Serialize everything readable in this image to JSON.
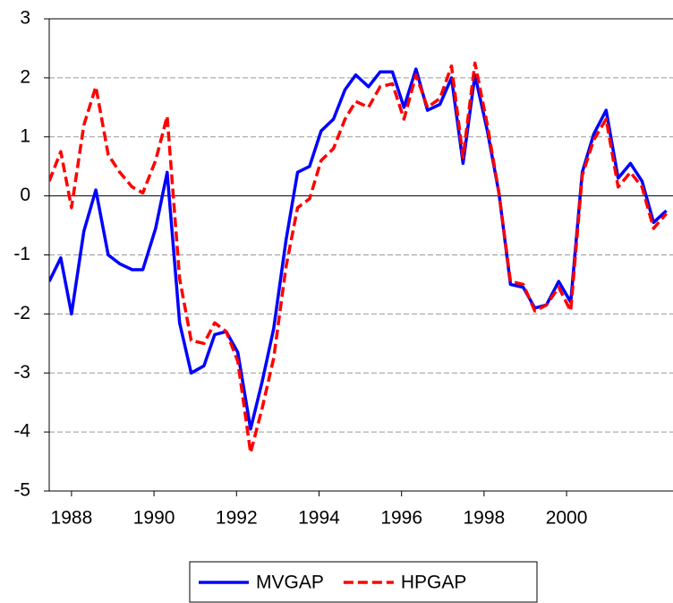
{
  "chart_data": {
    "type": "line",
    "x": [
      1987.46,
      1987.74,
      1988.0,
      1988.3,
      1988.59,
      1988.89,
      1989.17,
      1989.47,
      1989.73,
      1990.04,
      1990.32,
      1990.62,
      1990.9,
      1991.21,
      1991.47,
      1991.75,
      1992.03,
      1992.34,
      1992.62,
      1992.9,
      1993.2,
      1993.48,
      1993.77,
      1994.05,
      1994.35,
      1994.63,
      1994.89,
      1995.2,
      1995.48,
      1995.78,
      1996.06,
      1996.35,
      1996.63,
      1996.93,
      1997.21,
      1997.49,
      1997.78,
      1998.08,
      1998.36,
      1998.64,
      1998.95,
      1999.23,
      1999.51,
      1999.81,
      2000.1,
      2000.38,
      2000.66,
      2000.96,
      2001.25,
      2001.55,
      2001.83,
      2002.11,
      2002.42
    ],
    "series": [
      {
        "name": "MVGAP",
        "color": "#0000ff",
        "dashed": false,
        "values": [
          -1.45,
          -1.05,
          -2.0,
          -0.6,
          0.1,
          -1.0,
          -1.15,
          -1.25,
          -1.25,
          -0.55,
          0.4,
          -2.15,
          -3.0,
          -2.88,
          -2.35,
          -2.3,
          -2.65,
          -3.95,
          -3.15,
          -2.25,
          -0.75,
          0.4,
          0.5,
          1.1,
          1.3,
          1.8,
          2.05,
          1.85,
          2.1,
          2.1,
          1.5,
          2.15,
          1.45,
          1.55,
          2.0,
          0.55,
          2.05,
          1.1,
          0.05,
          -1.5,
          -1.55,
          -1.9,
          -1.85,
          -1.45,
          -1.8,
          0.4,
          1.05,
          1.45,
          0.3,
          0.55,
          0.25,
          -0.45,
          -0.25
        ]
      },
      {
        "name": "HPGAP",
        "color": "#ff0000",
        "dashed": true,
        "values": [
          0.25,
          0.75,
          -0.2,
          1.2,
          1.85,
          0.7,
          0.4,
          0.15,
          0.05,
          0.6,
          1.35,
          -1.4,
          -2.45,
          -2.5,
          -2.15,
          -2.3,
          -2.8,
          -4.35,
          -3.6,
          -2.75,
          -1.2,
          -0.2,
          -0.05,
          0.6,
          0.8,
          1.3,
          1.6,
          1.5,
          1.85,
          1.9,
          1.3,
          2.05,
          1.5,
          1.65,
          2.2,
          0.65,
          2.25,
          1.2,
          0.05,
          -1.45,
          -1.5,
          -1.95,
          -1.85,
          -1.55,
          -1.95,
          0.35,
          0.95,
          1.3,
          0.15,
          0.4,
          0.15,
          -0.55,
          -0.3
        ]
      }
    ],
    "xlim": [
      1987.46,
      2002.58
    ],
    "xticks": [
      1988,
      1990,
      1992,
      1994,
      1996,
      1998,
      2000
    ],
    "ylim": [
      -5,
      3
    ],
    "yticks": [
      -5,
      -4,
      -3,
      -2,
      -1,
      0,
      1,
      2,
      3
    ],
    "grid": true,
    "legend": "bottom"
  }
}
